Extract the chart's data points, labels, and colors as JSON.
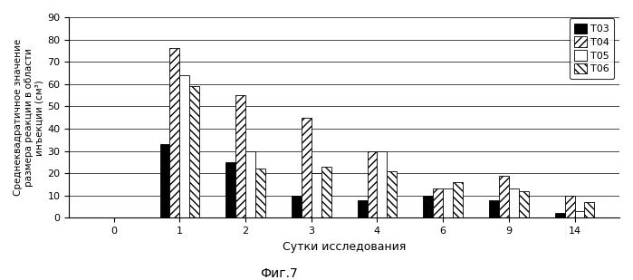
{
  "title": "Фиг.7",
  "xlabel": "Сутки исследования",
  "ylabel": "Среднеквадратичное значение\nразмера реакции в области\nинъекции (см³)",
  "groups": [
    0,
    1,
    2,
    3,
    4,
    6,
    9,
    14
  ],
  "series": {
    "T03": [
      0,
      33,
      25,
      10,
      8,
      10,
      8,
      2
    ],
    "T04": [
      0,
      76,
      55,
      45,
      30,
      13,
      19,
      10
    ],
    "T05": [
      0,
      64,
      30,
      20,
      30,
      13,
      13,
      3
    ],
    "T06": [
      0,
      59,
      22,
      23,
      21,
      16,
      12,
      7
    ]
  },
  "ylim": [
    0,
    90
  ],
  "yticks": [
    0,
    10,
    20,
    30,
    40,
    50,
    60,
    70,
    80,
    90
  ],
  "legend_labels": [
    "T03",
    "T04",
    "T05",
    "T06"
  ],
  "bar_width": 0.15,
  "figsize": [
    6.99,
    3.09
  ],
  "dpi": 100
}
